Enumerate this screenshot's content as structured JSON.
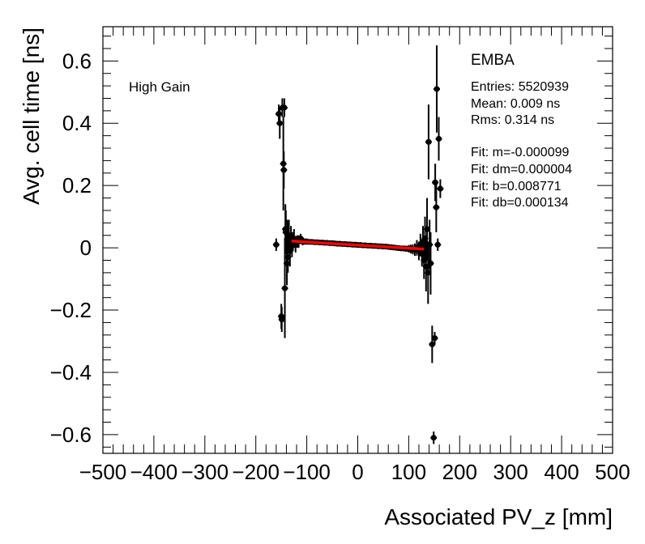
{
  "chart_data": {
    "type": "scatter",
    "title": "",
    "xlabel": "Associated PV_z [mm]",
    "ylabel": "Avg. cell time [ns]",
    "xlim": [
      -500,
      500
    ],
    "ylim": [
      -0.66,
      0.71
    ],
    "x_ticks": [
      -500,
      -400,
      -300,
      -200,
      -100,
      0,
      100,
      200,
      300,
      400,
      500
    ],
    "x_tick_labels": [
      "−500",
      "−400",
      "−300",
      "−200",
      "−100",
      "0",
      "100",
      "200",
      "300",
      "400",
      "500"
    ],
    "y_ticks": [
      -0.6,
      -0.4,
      -0.2,
      0,
      0.2,
      0.4,
      0.6
    ],
    "y_tick_labels": [
      "−0.6",
      "−0.4",
      "−0.2",
      "0",
      "0.2",
      "0.4",
      "0.6"
    ],
    "annotation": "High Gain",
    "stats": {
      "title": "EMBA",
      "entries": "Entries: 5520939",
      "mean": "Mean: 0.009 ns",
      "rms": "Rms: 0.314 ns",
      "fit_m": "Fit: m=-0.000099",
      "fit_dm": "Fit: dm=0.000004",
      "fit_b": "Fit: b=0.008771",
      "fit_db": "Fit: db=0.000134"
    },
    "fit_line": {
      "x": [
        -130,
        130
      ],
      "y": [
        0.0216,
        -0.0041
      ],
      "color": "#ff0000"
    },
    "series": [
      {
        "name": "data",
        "color": "#000000",
        "points": [
          {
            "x": -160,
            "y": 0.01,
            "err": 0.02
          },
          {
            "x": -155,
            "y": 0.43,
            "err": 0.03
          },
          {
            "x": -153,
            "y": 0.4,
            "err": 0.05
          },
          {
            "x": -150,
            "y": -0.22,
            "err": 0.04
          },
          {
            "x": -149,
            "y": -0.23,
            "err": 0.04
          },
          {
            "x": -148,
            "y": 0.45,
            "err": 0.03
          },
          {
            "x": -146,
            "y": 0.27,
            "err": 0.15
          },
          {
            "x": -145,
            "y": 0.25,
            "err": 0.06
          },
          {
            "x": -144,
            "y": 0.45,
            "err": 0.03
          },
          {
            "x": -143,
            "y": -0.13,
            "err": 0.16
          },
          {
            "x": -142,
            "y": 0.06,
            "err": 0.08
          },
          {
            "x": -141,
            "y": 0.05,
            "err": 0.07
          },
          {
            "x": -139,
            "y": -0.05,
            "err": 0.07
          },
          {
            "x": -138,
            "y": 0.03,
            "err": 0.06
          },
          {
            "x": -137,
            "y": -0.03,
            "err": 0.05
          },
          {
            "x": -135,
            "y": 0.04,
            "err": 0.05
          },
          {
            "x": -133,
            "y": -0.01,
            "err": 0.05
          },
          {
            "x": -131,
            "y": 0.03,
            "err": 0.04
          },
          {
            "x": -129,
            "y": 0.01,
            "err": 0.04
          },
          {
            "x": -127,
            "y": 0.02,
            "err": 0.03
          },
          {
            "x": -125,
            "y": 0.03,
            "err": 0.03
          },
          {
            "x": -122,
            "y": 0.01,
            "err": 0.025
          },
          {
            "x": -119,
            "y": 0.02,
            "err": 0.02
          },
          {
            "x": -116,
            "y": 0.02,
            "err": 0.02
          },
          {
            "x": -112,
            "y": 0.03,
            "err": 0.015
          },
          {
            "x": -108,
            "y": 0.02,
            "err": 0.012
          },
          {
            "x": -104,
            "y": 0.02,
            "err": 0.01
          },
          {
            "x": -100,
            "y": 0.02,
            "err": 0.01
          },
          {
            "x": -95,
            "y": 0.019,
            "err": 0.008
          },
          {
            "x": -90,
            "y": 0.019,
            "err": 0.007
          },
          {
            "x": -85,
            "y": 0.018,
            "err": 0.007
          },
          {
            "x": -80,
            "y": 0.018,
            "err": 0.006
          },
          {
            "x": -75,
            "y": 0.017,
            "err": 0.006
          },
          {
            "x": -70,
            "y": 0.017,
            "err": 0.006
          },
          {
            "x": -65,
            "y": 0.016,
            "err": 0.005
          },
          {
            "x": -60,
            "y": 0.016,
            "err": 0.005
          },
          {
            "x": -55,
            "y": 0.015,
            "err": 0.005
          },
          {
            "x": -50,
            "y": 0.015,
            "err": 0.005
          },
          {
            "x": -45,
            "y": 0.014,
            "err": 0.005
          },
          {
            "x": -40,
            "y": 0.013,
            "err": 0.005
          },
          {
            "x": -35,
            "y": 0.013,
            "err": 0.005
          },
          {
            "x": -30,
            "y": 0.012,
            "err": 0.005
          },
          {
            "x": -25,
            "y": 0.012,
            "err": 0.005
          },
          {
            "x": -20,
            "y": 0.011,
            "err": 0.005
          },
          {
            "x": -15,
            "y": 0.011,
            "err": 0.005
          },
          {
            "x": -10,
            "y": 0.01,
            "err": 0.005
          },
          {
            "x": -5,
            "y": 0.01,
            "err": 0.005
          },
          {
            "x": 0,
            "y": 0.009,
            "err": 0.005
          },
          {
            "x": 5,
            "y": 0.009,
            "err": 0.005
          },
          {
            "x": 10,
            "y": 0.008,
            "err": 0.005
          },
          {
            "x": 15,
            "y": 0.008,
            "err": 0.005
          },
          {
            "x": 20,
            "y": 0.007,
            "err": 0.005
          },
          {
            "x": 25,
            "y": 0.007,
            "err": 0.005
          },
          {
            "x": 30,
            "y": 0.006,
            "err": 0.005
          },
          {
            "x": 35,
            "y": 0.006,
            "err": 0.005
          },
          {
            "x": 40,
            "y": 0.005,
            "err": 0.005
          },
          {
            "x": 45,
            "y": 0.005,
            "err": 0.005
          },
          {
            "x": 50,
            "y": 0.004,
            "err": 0.005
          },
          {
            "x": 55,
            "y": 0.004,
            "err": 0.005
          },
          {
            "x": 60,
            "y": 0.003,
            "err": 0.005
          },
          {
            "x": 65,
            "y": 0.002,
            "err": 0.005
          },
          {
            "x": 70,
            "y": 0.001,
            "err": 0.006
          },
          {
            "x": 75,
            "y": 0.0,
            "err": 0.006
          },
          {
            "x": 80,
            "y": -0.001,
            "err": 0.007
          },
          {
            "x": 85,
            "y": -0.002,
            "err": 0.008
          },
          {
            "x": 90,
            "y": -0.002,
            "err": 0.009
          },
          {
            "x": 95,
            "y": -0.003,
            "err": 0.01
          },
          {
            "x": 100,
            "y": -0.003,
            "err": 0.012
          },
          {
            "x": 104,
            "y": -0.004,
            "err": 0.014
          },
          {
            "x": 108,
            "y": -0.005,
            "err": 0.016
          },
          {
            "x": 112,
            "y": -0.006,
            "err": 0.02
          },
          {
            "x": 116,
            "y": 0.0,
            "err": 0.025
          },
          {
            "x": 120,
            "y": -0.01,
            "err": 0.03
          },
          {
            "x": 123,
            "y": 0.01,
            "err": 0.035
          },
          {
            "x": 126,
            "y": -0.02,
            "err": 0.04
          },
          {
            "x": 128,
            "y": 0.02,
            "err": 0.05
          },
          {
            "x": 130,
            "y": -0.04,
            "err": 0.06
          },
          {
            "x": 132,
            "y": 0.03,
            "err": 0.07
          },
          {
            "x": 134,
            "y": -0.06,
            "err": 0.08
          },
          {
            "x": 136,
            "y": 0.06,
            "err": 0.1
          },
          {
            "x": 138,
            "y": -0.08,
            "err": 0.1
          },
          {
            "x": 139,
            "y": 0.34,
            "err": 0.12
          },
          {
            "x": 141,
            "y": 0.01,
            "err": 0.08
          },
          {
            "x": 143,
            "y": -0.05,
            "err": 0.1
          },
          {
            "x": 146,
            "y": -0.31,
            "err": 0.06
          },
          {
            "x": 149,
            "y": -0.61,
            "err": 0.02
          },
          {
            "x": 151,
            "y": -0.29,
            "err": 0.02
          },
          {
            "x": 152,
            "y": 0.21,
            "err": 0.06
          },
          {
            "x": 154,
            "y": 0.13,
            "err": 0.08
          },
          {
            "x": 155,
            "y": 0.51,
            "err": 0.14
          },
          {
            "x": 157,
            "y": 0.01,
            "err": 0.02
          },
          {
            "x": 159,
            "y": 0.35,
            "err": 0.07
          },
          {
            "x": 162,
            "y": 0.19,
            "err": 0.03
          }
        ]
      }
    ]
  }
}
